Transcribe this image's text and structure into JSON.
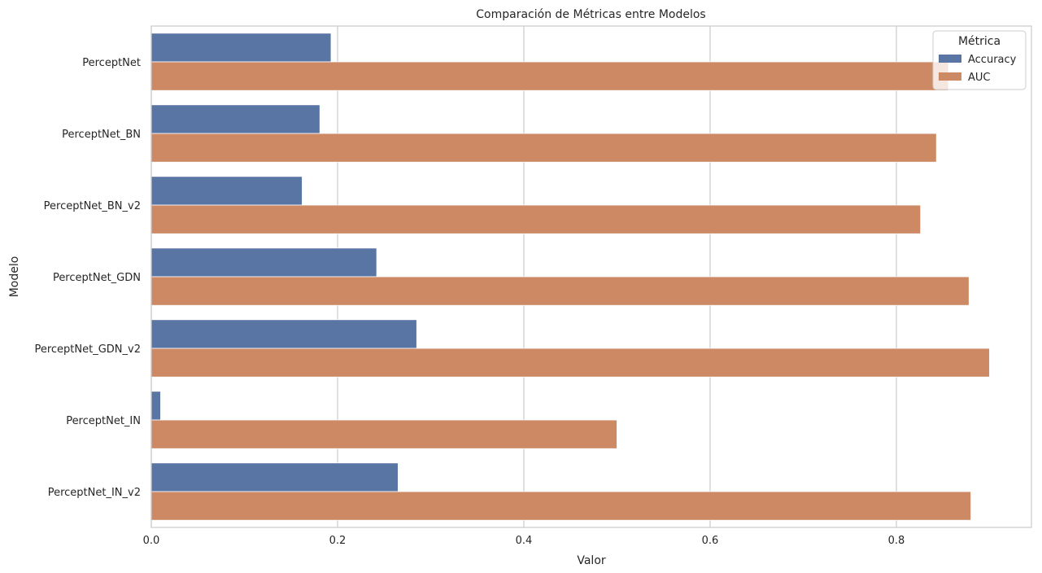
{
  "chart_data": {
    "type": "bar",
    "orientation": "horizontal",
    "title": "Comparación de Métricas entre Modelos",
    "xlabel": "Valor",
    "ylabel": "Modelo",
    "categories": [
      "PerceptNet",
      "PerceptNet_BN",
      "PerceptNet_BN_v2",
      "PerceptNet_GDN",
      "PerceptNet_GDN_v2",
      "PerceptNet_IN",
      "PerceptNet_IN_v2"
    ],
    "series": [
      {
        "name": "Accuracy",
        "color": "#5975a4",
        "values": [
          0.193,
          0.181,
          0.162,
          0.242,
          0.285,
          0.01,
          0.265
        ]
      },
      {
        "name": "AUC",
        "color": "#cc8963",
        "values": [
          0.856,
          0.843,
          0.826,
          0.878,
          0.9,
          0.5,
          0.88
        ]
      }
    ],
    "xlim": [
      0,
      0.945
    ],
    "xticks": [
      0.0,
      0.2,
      0.4,
      0.6,
      0.8
    ],
    "xtick_labels": [
      "0.0",
      "0.2",
      "0.4",
      "0.6",
      "0.8"
    ],
    "grid": true,
    "legend": {
      "title": "Métrica",
      "placement": "top-right"
    }
  }
}
